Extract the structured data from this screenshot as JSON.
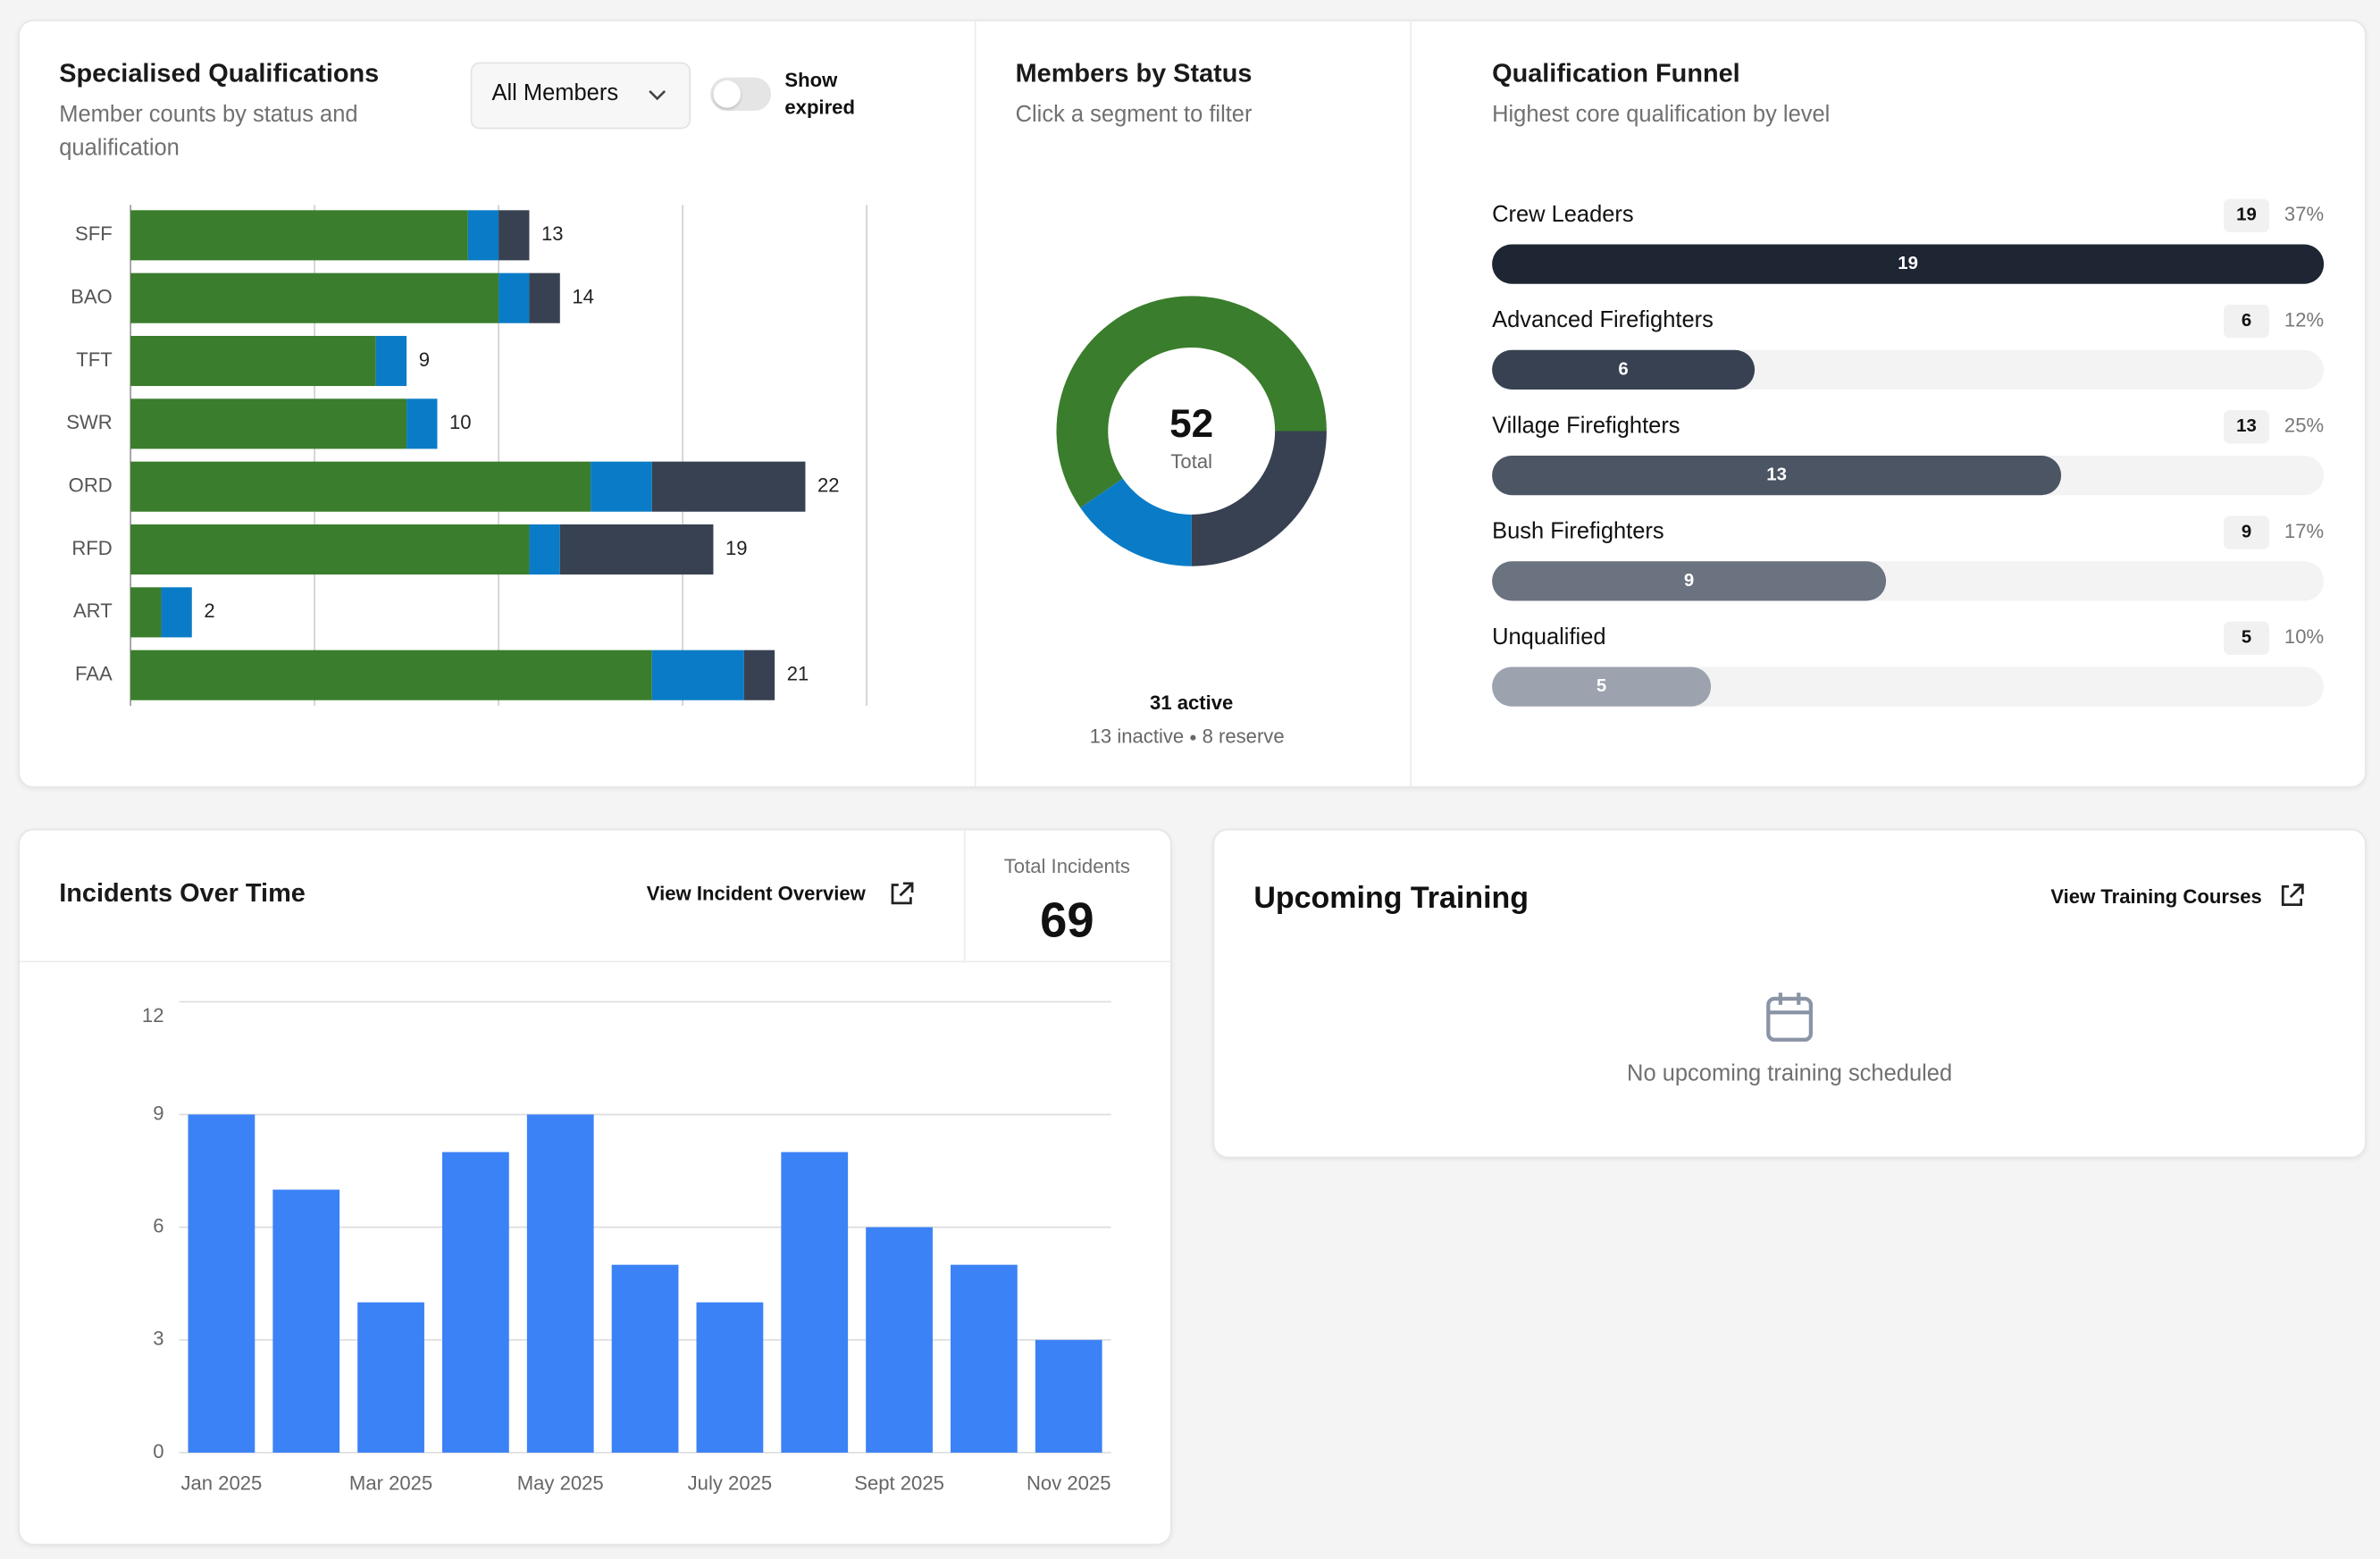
{
  "chart_data": [
    {
      "type": "stacked-barh",
      "title": "Specialised Qualifications",
      "subtitle": "Member counts by status and qualification",
      "categories": [
        "SFF",
        "BAO",
        "TFT",
        "SWR",
        "ORD",
        "RFD",
        "ART",
        "FAA"
      ],
      "series": [
        {
          "color": "#3a7d2c",
          "values": [
            11,
            12,
            8,
            9,
            15,
            13,
            1,
            17
          ]
        },
        {
          "color": "#0a7bc7",
          "values": [
            1,
            1,
            1,
            1,
            2,
            1,
            1,
            3
          ]
        },
        {
          "color": "#374151",
          "values": [
            1,
            1,
            0,
            0,
            5,
            5,
            0,
            1
          ]
        }
      ],
      "totals": [
        13,
        14,
        9,
        10,
        22,
        19,
        2,
        21
      ],
      "xlim": [
        0,
        24
      ],
      "xticks": [
        0,
        6,
        12,
        18,
        24
      ],
      "grid": true
    },
    {
      "type": "donut",
      "title": "Members by Status",
      "subtitle": "Click a segment to filter",
      "values": [
        31,
        13,
        8
      ],
      "value_labels": [
        "31 active",
        "13 inactive",
        "8 reserve"
      ],
      "colors": [
        "#3a7d2c",
        "#374151",
        "#0a7bc7"
      ],
      "total": 52,
      "total_label": "Total"
    },
    {
      "type": "funnel",
      "title": "Qualification Funnel",
      "subtitle": "Highest core qualification by level",
      "categories": [
        "Crew Leaders",
        "Advanced Firefighters",
        "Village Firefighters",
        "Bush Firefighters",
        "Unqualified"
      ],
      "values": [
        19,
        6,
        13,
        9,
        5
      ],
      "percent_labels": [
        "37%",
        "12%",
        "25%",
        "17%",
        "10%"
      ],
      "colors": [
        "#1e2533",
        "#374151",
        "#4b5563",
        "#6b7280",
        "#9ca3af"
      ],
      "xlim": [
        0,
        19
      ]
    },
    {
      "type": "bar",
      "title": "Incidents Over Time",
      "categories": [
        "Jan 2025",
        null,
        "Mar 2025",
        null,
        "May 2025",
        null,
        "July 2025",
        null,
        "Sept 2025",
        null,
        "Nov 2025"
      ],
      "values": [
        9,
        7,
        4,
        8,
        9,
        5,
        4,
        8,
        6,
        5,
        3
      ],
      "color": "#3b82f6",
      "ylim": [
        0,
        12
      ],
      "yticks": [
        0,
        3,
        6,
        9,
        12
      ],
      "grid": true
    }
  ],
  "controls": {
    "filter": "All Members",
    "toggle_label": "Show expired"
  },
  "incidents": {
    "link": "View Incident Overview",
    "total_label": "Total Incidents",
    "total": 69
  },
  "training": {
    "title": "Upcoming Training",
    "link": "View Training Courses",
    "empty": "No upcoming training scheduled"
  }
}
